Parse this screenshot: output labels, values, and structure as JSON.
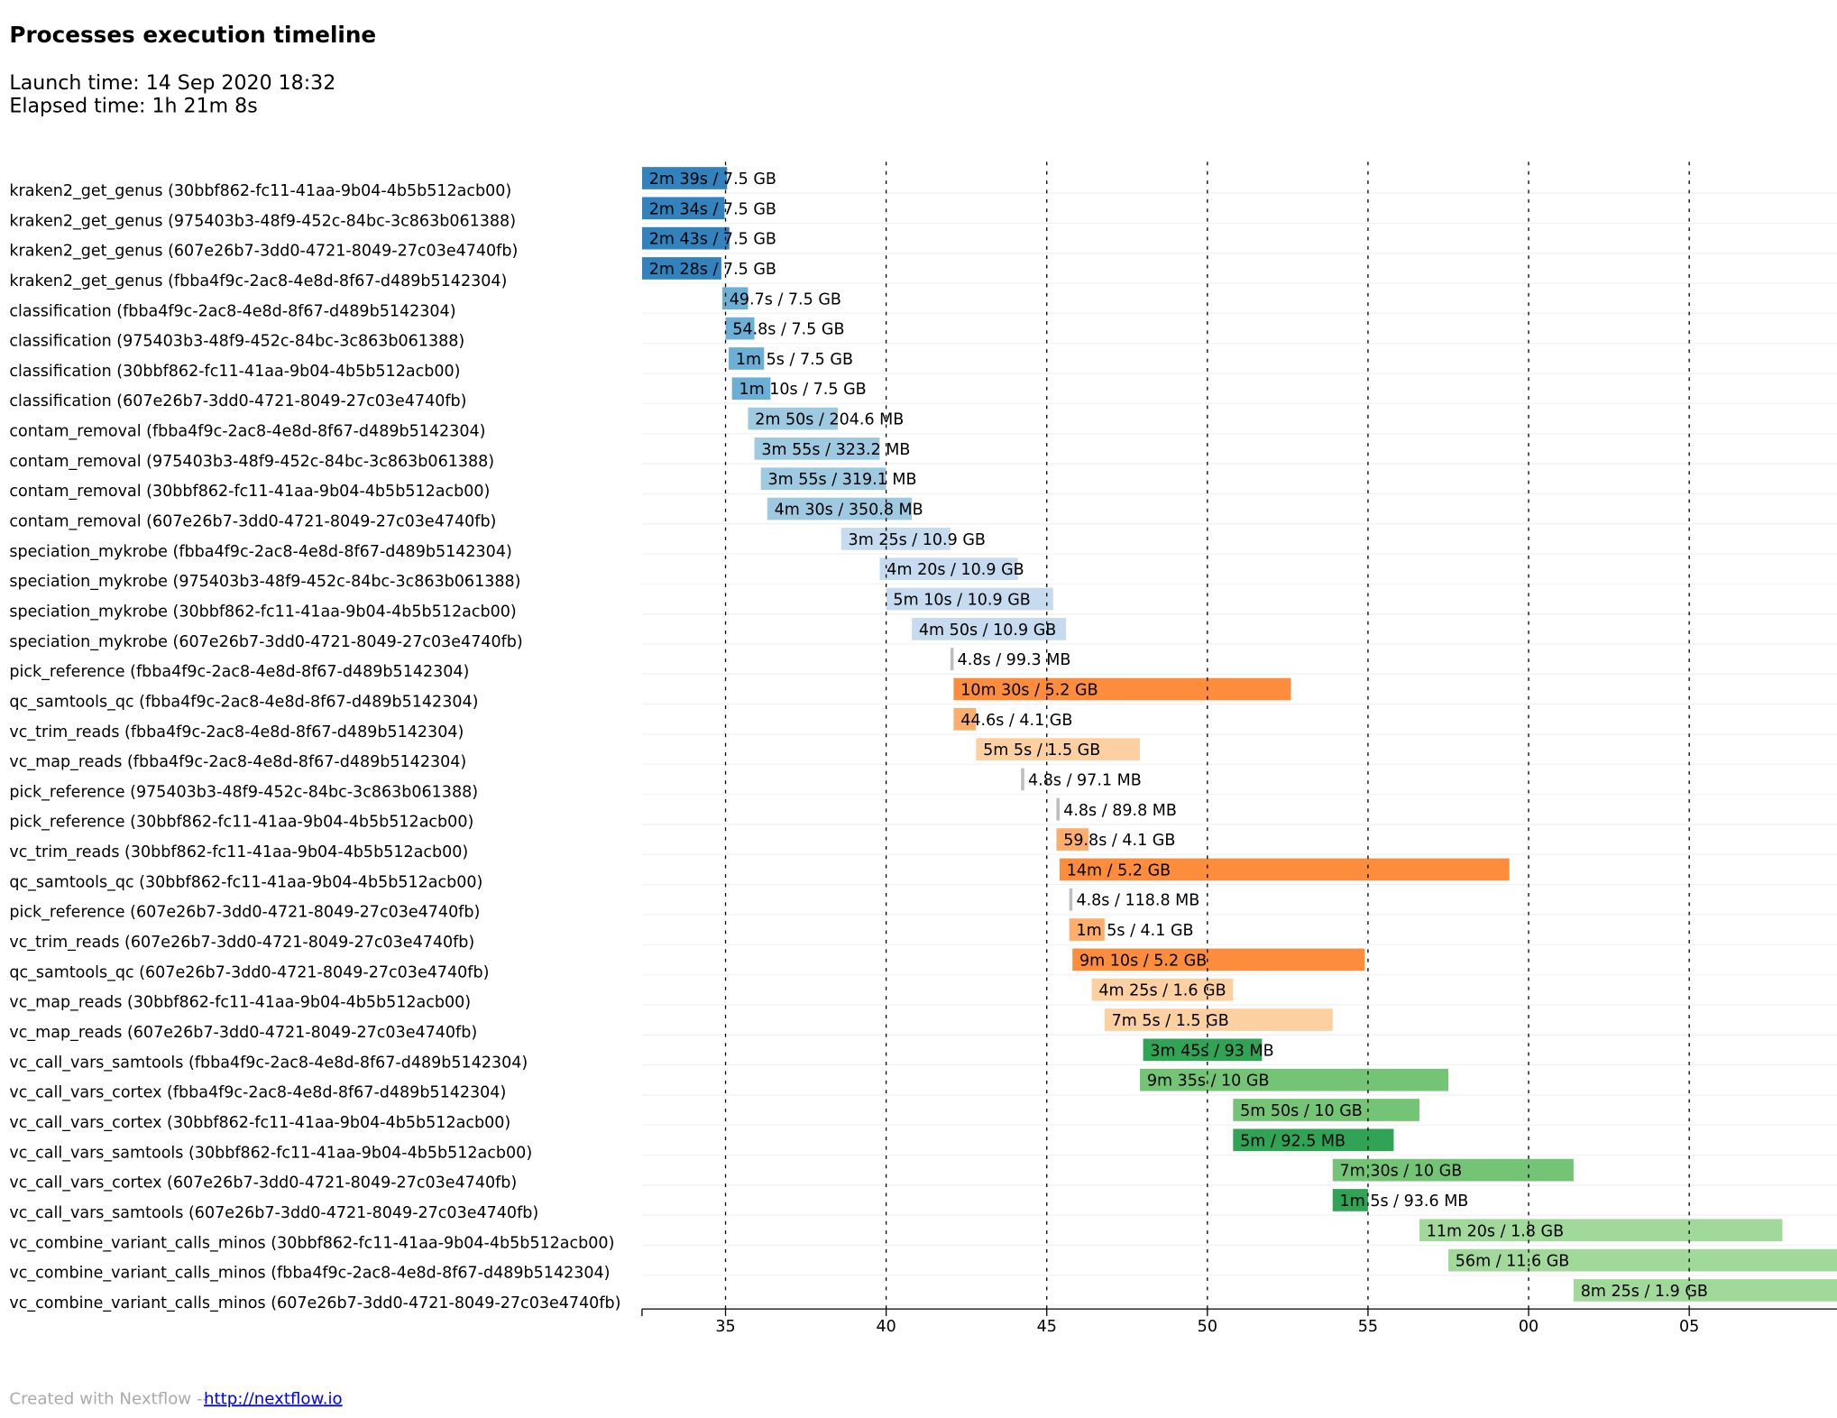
{
  "chart_data": {
    "type": "timeline",
    "title": "Processes execution timeline",
    "launch_time": "Launch time: 14 Sep 2020 18:32",
    "elapsed_time": "Elapsed time: 1h 21m 8s",
    "footer": "Created with Nextflow --",
    "footer_link": "http://nextflow.io",
    "xlim": [
      32.4,
      69.6
    ],
    "xticks": [
      35,
      40,
      45,
      50,
      55,
      {
        "value": 60,
        "label": "00"
      },
      {
        "value": 65,
        "label": "05"
      }
    ],
    "grid": true,
    "tasks": [
      {
        "label": "kraken2_get_genus (30bbf862-fc11-41aa-9b04-4b5b512acb00)",
        "start": 32.4,
        "end": 35.05,
        "text": "2m 39s / 7.5 GB",
        "color": "#3182bd"
      },
      {
        "label": "kraken2_get_genus (975403b3-48f9-452c-84bc-3c863b061388)",
        "start": 32.4,
        "end": 34.97,
        "text": "2m 34s / 7.5 GB",
        "color": "#3182bd"
      },
      {
        "label": "kraken2_get_genus (607e26b7-3dd0-4721-8049-27c03e4740fb)",
        "start": 32.4,
        "end": 35.12,
        "text": "2m 43s / 7.5 GB",
        "color": "#3182bd"
      },
      {
        "label": "kraken2_get_genus (fbba4f9c-2ac8-4e8d-8f67-d489b5142304)",
        "start": 32.4,
        "end": 34.87,
        "text": "2m 28s / 7.5 GB",
        "color": "#3182bd"
      },
      {
        "label": "classification (fbba4f9c-2ac8-4e8d-8f67-d489b5142304)",
        "start": 34.9,
        "end": 35.7,
        "text": "49.7s / 7.5 GB",
        "color": "#6baed6"
      },
      {
        "label": "classification (975403b3-48f9-452c-84bc-3c863b061388)",
        "start": 35.0,
        "end": 35.9,
        "text": "54.8s / 7.5 GB",
        "color": "#6baed6"
      },
      {
        "label": "classification (30bbf862-fc11-41aa-9b04-4b5b512acb00)",
        "start": 35.1,
        "end": 36.2,
        "text": "1m 5s / 7.5 GB",
        "color": "#6baed6"
      },
      {
        "label": "classification (607e26b7-3dd0-4721-8049-27c03e4740fb)",
        "start": 35.2,
        "end": 36.4,
        "text": "1m 10s / 7.5 GB",
        "color": "#6baed6"
      },
      {
        "label": "contam_removal (fbba4f9c-2ac8-4e8d-8f67-d489b5142304)",
        "start": 35.7,
        "end": 38.5,
        "text": "2m 50s / 204.6 MB",
        "color": "#9ecae1"
      },
      {
        "label": "contam_removal (975403b3-48f9-452c-84bc-3c863b061388)",
        "start": 35.9,
        "end": 39.8,
        "text": "3m 55s / 323.2 MB",
        "color": "#9ecae1"
      },
      {
        "label": "contam_removal (30bbf862-fc11-41aa-9b04-4b5b512acb00)",
        "start": 36.1,
        "end": 40.0,
        "text": "3m 55s / 319.1 MB",
        "color": "#9ecae1"
      },
      {
        "label": "contam_removal (607e26b7-3dd0-4721-8049-27c03e4740fb)",
        "start": 36.3,
        "end": 40.8,
        "text": "4m 30s / 350.8 MB",
        "color": "#9ecae1"
      },
      {
        "label": "speciation_mykrobe (fbba4f9c-2ac8-4e8d-8f67-d489b5142304)",
        "start": 38.6,
        "end": 42.0,
        "text": "3m 25s / 10.9 GB",
        "color": "#c6dbef"
      },
      {
        "label": "speciation_mykrobe (975403b3-48f9-452c-84bc-3c863b061388)",
        "start": 39.8,
        "end": 44.1,
        "text": "4m 20s / 10.9 GB",
        "color": "#c6dbef"
      },
      {
        "label": "speciation_mykrobe (30bbf862-fc11-41aa-9b04-4b5b512acb00)",
        "start": 40.0,
        "end": 45.2,
        "text": "5m 10s / 10.9 GB",
        "color": "#c6dbef"
      },
      {
        "label": "speciation_mykrobe (607e26b7-3dd0-4721-8049-27c03e4740fb)",
        "start": 40.8,
        "end": 45.6,
        "text": "4m 50s / 10.9 GB",
        "color": "#c6dbef"
      },
      {
        "label": "pick_reference (fbba4f9c-2ac8-4e8d-8f67-d489b5142304)",
        "start": 42.0,
        "end": 42.1,
        "text": "4.8s / 99.3 MB",
        "color": "#bdbdbd"
      },
      {
        "label": "qc_samtools_qc (fbba4f9c-2ac8-4e8d-8f67-d489b5142304)",
        "start": 42.1,
        "end": 52.6,
        "text": "10m 30s / 5.2 GB",
        "color": "#fd8d3c"
      },
      {
        "label": "vc_trim_reads (fbba4f9c-2ac8-4e8d-8f67-d489b5142304)",
        "start": 42.1,
        "end": 42.8,
        "text": "44.6s / 4.1 GB",
        "color": "#fdae6b"
      },
      {
        "label": "vc_map_reads (fbba4f9c-2ac8-4e8d-8f67-d489b5142304)",
        "start": 42.8,
        "end": 47.9,
        "text": "5m 5s / 1.5 GB",
        "color": "#fdd0a2"
      },
      {
        "label": "pick_reference (975403b3-48f9-452c-84bc-3c863b061388)",
        "start": 44.2,
        "end": 44.3,
        "text": "4.8s / 97.1 MB",
        "color": "#bdbdbd"
      },
      {
        "label": "pick_reference (30bbf862-fc11-41aa-9b04-4b5b512acb00)",
        "start": 45.3,
        "end": 45.4,
        "text": "4.8s / 89.8 MB",
        "color": "#bdbdbd"
      },
      {
        "label": "vc_trim_reads (30bbf862-fc11-41aa-9b04-4b5b512acb00)",
        "start": 45.3,
        "end": 46.3,
        "text": "59.8s / 4.1 GB",
        "color": "#fdae6b"
      },
      {
        "label": "qc_samtools_qc (30bbf862-fc11-41aa-9b04-4b5b512acb00)",
        "start": 45.4,
        "end": 59.4,
        "text": "14m / 5.2 GB",
        "color": "#fd8d3c"
      },
      {
        "label": "pick_reference (607e26b7-3dd0-4721-8049-27c03e4740fb)",
        "start": 45.7,
        "end": 45.8,
        "text": "4.8s / 118.8 MB",
        "color": "#bdbdbd"
      },
      {
        "label": "vc_trim_reads (607e26b7-3dd0-4721-8049-27c03e4740fb)",
        "start": 45.7,
        "end": 46.8,
        "text": "1m 5s / 4.1 GB",
        "color": "#fdae6b"
      },
      {
        "label": "qc_samtools_qc (607e26b7-3dd0-4721-8049-27c03e4740fb)",
        "start": 45.8,
        "end": 54.9,
        "text": "9m 10s / 5.2 GB",
        "color": "#fd8d3c"
      },
      {
        "label": "vc_map_reads (30bbf862-fc11-41aa-9b04-4b5b512acb00)",
        "start": 46.4,
        "end": 50.8,
        "text": "4m 25s / 1.6 GB",
        "color": "#fdd0a2"
      },
      {
        "label": "vc_map_reads (607e26b7-3dd0-4721-8049-27c03e4740fb)",
        "start": 46.8,
        "end": 53.9,
        "text": "7m 5s / 1.5 GB",
        "color": "#fdd0a2"
      },
      {
        "label": "vc_call_vars_samtools (fbba4f9c-2ac8-4e8d-8f67-d489b5142304)",
        "start": 48.0,
        "end": 51.7,
        "text": "3m 45s / 93 MB",
        "color": "#31a354"
      },
      {
        "label": "vc_call_vars_cortex (fbba4f9c-2ac8-4e8d-8f67-d489b5142304)",
        "start": 47.9,
        "end": 57.5,
        "text": "9m 35s / 10 GB",
        "color": "#74c476"
      },
      {
        "label": "vc_call_vars_cortex (30bbf862-fc11-41aa-9b04-4b5b512acb00)",
        "start": 50.8,
        "end": 56.6,
        "text": "5m 50s / 10 GB",
        "color": "#74c476"
      },
      {
        "label": "vc_call_vars_samtools (30bbf862-fc11-41aa-9b04-4b5b512acb00)",
        "start": 50.8,
        "end": 55.8,
        "text": "5m / 92.5 MB",
        "color": "#31a354"
      },
      {
        "label": "vc_call_vars_cortex (607e26b7-3dd0-4721-8049-27c03e4740fb)",
        "start": 53.9,
        "end": 61.4,
        "text": "7m 30s / 10 GB",
        "color": "#74c476"
      },
      {
        "label": "vc_call_vars_samtools (607e26b7-3dd0-4721-8049-27c03e4740fb)",
        "start": 53.9,
        "end": 55.0,
        "text": "1m 5s / 93.6 MB",
        "color": "#31a354"
      },
      {
        "label": "vc_combine_variant_calls_minos (30bbf862-fc11-41aa-9b04-4b5b512acb00)",
        "start": 56.6,
        "end": 67.9,
        "text": "11m 20s / 1.8 GB",
        "color": "#a1d99b"
      },
      {
        "label": "vc_combine_variant_calls_minos (fbba4f9c-2ac8-4e8d-8f67-d489b5142304)",
        "start": 57.5,
        "end": 113.6,
        "text": "56m / 11.6 GB",
        "color": "#a1d99b"
      },
      {
        "label": "vc_combine_variant_calls_minos (607e26b7-3dd0-4721-8049-27c03e4740fb)",
        "start": 61.4,
        "end": 69.8,
        "text": "8m 25s / 1.9 GB",
        "color": "#a1d99b"
      }
    ]
  }
}
